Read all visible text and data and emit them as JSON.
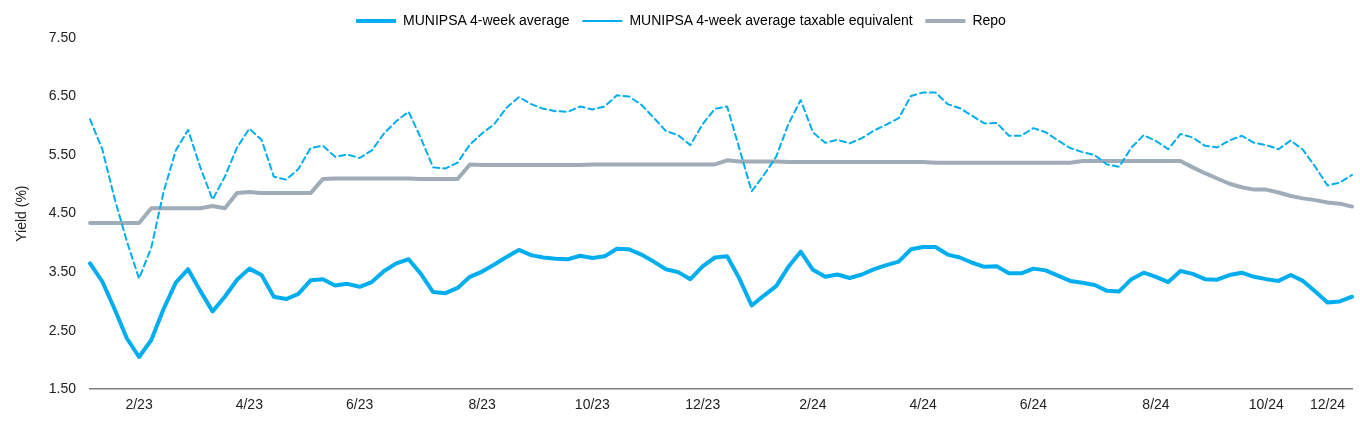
{
  "chart_data": {
    "type": "line",
    "ylabel": "Yield (%)",
    "categories": [
      null,
      null,
      null,
      null,
      "2/23",
      null,
      null,
      null,
      null,
      null,
      null,
      null,
      null,
      "4/23",
      null,
      null,
      null,
      null,
      null,
      null,
      null,
      null,
      "6/23",
      null,
      null,
      null,
      null,
      null,
      null,
      null,
      null,
      null,
      "8/23",
      null,
      null,
      null,
      null,
      null,
      null,
      null,
      null,
      "10/23",
      null,
      null,
      null,
      null,
      null,
      null,
      null,
      null,
      "12/23",
      null,
      null,
      null,
      null,
      null,
      null,
      null,
      null,
      "2/24",
      null,
      null,
      null,
      null,
      null,
      null,
      null,
      null,
      "4/24",
      null,
      null,
      null,
      null,
      null,
      null,
      null,
      null,
      "6/24",
      null,
      null,
      null,
      null,
      null,
      null,
      null,
      null,
      null,
      "8/24",
      null,
      null,
      null,
      null,
      null,
      null,
      null,
      null,
      "10/24",
      null,
      null,
      null,
      null,
      "12/24",
      null,
      null
    ],
    "ylim": [
      1.5,
      7.5
    ],
    "yticks": [
      {
        "value": 1.5,
        "label": "1.50"
      },
      {
        "value": 2.5,
        "label": "2.50"
      },
      {
        "value": 3.5,
        "label": "3.50"
      },
      {
        "value": 4.5,
        "label": "4.50"
      },
      {
        "value": 5.5,
        "label": "5.50"
      },
      {
        "value": 6.5,
        "label": "6.50"
      },
      {
        "value": 7.5,
        "label": "7.50"
      }
    ],
    "grid": false,
    "legend": "top",
    "marker": "none",
    "series": [
      {
        "name": "MUNIPSA 4-week average",
        "color": "#00aeef",
        "line_style": "solid",
        "values": [
          3.65,
          3.34,
          2.87,
          2.37,
          2.05,
          2.34,
          2.87,
          3.32,
          3.55,
          3.18,
          2.83,
          3.08,
          3.37,
          3.56,
          3.45,
          3.08,
          3.04,
          3.13,
          3.36,
          3.38,
          3.27,
          3.3,
          3.25,
          3.33,
          3.52,
          3.65,
          3.72,
          3.47,
          3.16,
          3.14,
          3.23,
          3.42,
          3.51,
          3.63,
          3.76,
          3.88,
          3.79,
          3.75,
          3.73,
          3.72,
          3.78,
          3.74,
          3.77,
          3.9,
          3.89,
          3.8,
          3.68,
          3.55,
          3.5,
          3.38,
          3.6,
          3.75,
          3.77,
          3.39,
          2.93,
          3.1,
          3.26,
          3.59,
          3.85,
          3.54,
          3.42,
          3.46,
          3.4,
          3.46,
          3.55,
          3.62,
          3.68,
          3.89,
          3.93,
          3.93,
          3.8,
          3.75,
          3.66,
          3.59,
          3.6,
          3.48,
          3.48,
          3.56,
          3.53,
          3.44,
          3.35,
          3.32,
          3.28,
          3.18,
          3.17,
          3.38,
          3.49,
          3.42,
          3.33,
          3.52,
          3.47,
          3.38,
          3.37,
          3.45,
          3.49,
          3.42,
          3.38,
          3.35,
          3.45,
          3.35,
          3.17,
          2.98,
          3.0,
          3.08
        ]
      },
      {
        "name": "MUNIPSA 4-week average taxable equivalent",
        "color": "#00aeef",
        "line_style": "dashed",
        "values": [
          6.11,
          5.6,
          4.76,
          4.03,
          3.39,
          3.92,
          4.87,
          5.58,
          5.93,
          5.29,
          4.74,
          5.13,
          5.63,
          5.95,
          5.76,
          5.13,
          5.08,
          5.26,
          5.62,
          5.66,
          5.47,
          5.51,
          5.45,
          5.58,
          5.87,
          6.08,
          6.24,
          5.79,
          5.29,
          5.27,
          5.37,
          5.68,
          5.87,
          6.03,
          6.31,
          6.49,
          6.37,
          6.29,
          6.25,
          6.24,
          6.33,
          6.28,
          6.33,
          6.52,
          6.5,
          6.36,
          6.14,
          5.91,
          5.84,
          5.67,
          6.03,
          6.29,
          6.33,
          5.61,
          4.88,
          5.16,
          5.47,
          6.03,
          6.44,
          5.89,
          5.71,
          5.76,
          5.7,
          5.79,
          5.92,
          6.02,
          6.13,
          6.51,
          6.57,
          6.57,
          6.37,
          6.3,
          6.17,
          6.04,
          6.05,
          5.83,
          5.83,
          5.96,
          5.89,
          5.75,
          5.62,
          5.55,
          5.5,
          5.34,
          5.3,
          5.63,
          5.84,
          5.74,
          5.6,
          5.86,
          5.8,
          5.66,
          5.63,
          5.75,
          5.83,
          5.71,
          5.67,
          5.6,
          5.75,
          5.59,
          5.3,
          4.98,
          5.03,
          5.16
        ]
      },
      {
        "name": "Repo",
        "color": "#a0adb8",
        "line_style": "solid",
        "values": [
          4.34,
          4.34,
          4.34,
          4.34,
          4.34,
          4.59,
          4.59,
          4.59,
          4.59,
          4.59,
          4.63,
          4.59,
          4.85,
          4.87,
          4.85,
          4.85,
          4.85,
          4.85,
          4.85,
          5.09,
          5.1,
          5.1,
          5.1,
          5.1,
          5.1,
          5.1,
          5.1,
          5.09,
          5.09,
          5.09,
          5.09,
          5.34,
          5.33,
          5.33,
          5.33,
          5.33,
          5.33,
          5.33,
          5.33,
          5.33,
          5.33,
          5.34,
          5.34,
          5.34,
          5.34,
          5.34,
          5.34,
          5.34,
          5.34,
          5.34,
          5.34,
          5.34,
          5.41,
          5.39,
          5.39,
          5.39,
          5.39,
          5.38,
          5.38,
          5.38,
          5.38,
          5.38,
          5.38,
          5.38,
          5.38,
          5.38,
          5.38,
          5.38,
          5.38,
          5.37,
          5.37,
          5.37,
          5.37,
          5.37,
          5.37,
          5.37,
          5.37,
          5.37,
          5.37,
          5.37,
          5.37,
          5.4,
          5.4,
          5.4,
          5.4,
          5.4,
          5.4,
          5.4,
          5.4,
          5.4,
          5.29,
          5.19,
          5.1,
          5.01,
          4.95,
          4.91,
          4.91,
          4.86,
          4.8,
          4.76,
          4.73,
          4.69,
          4.67,
          4.62
        ]
      }
    ]
  }
}
